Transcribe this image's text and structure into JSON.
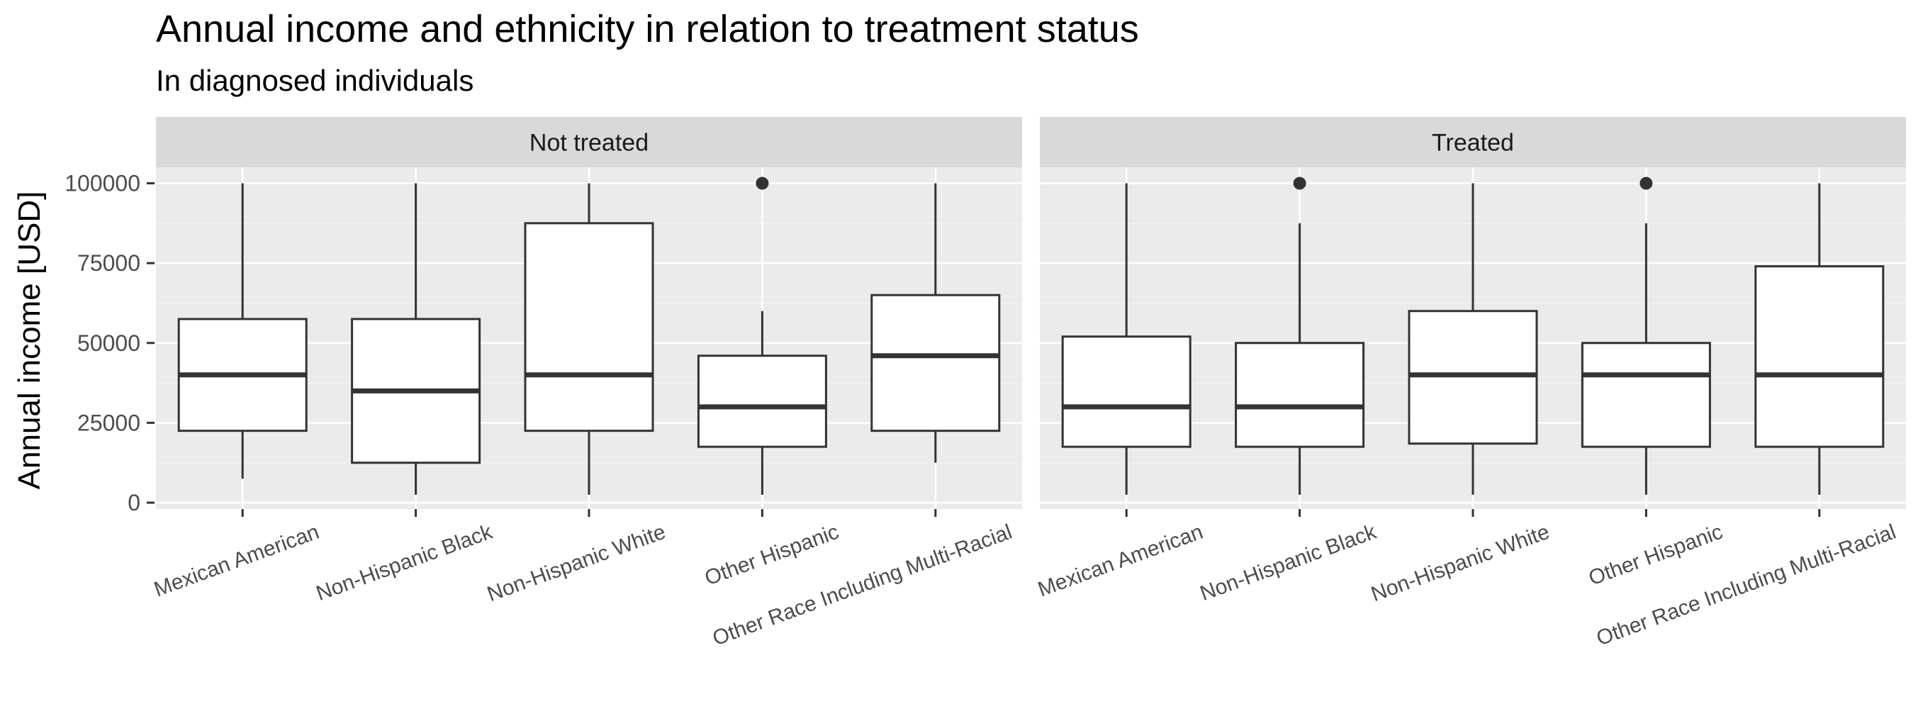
{
  "chart_data": {
    "type": "boxplot",
    "title": "Annual income and ethnicity in relation to treatment status",
    "subtitle": "In diagnosed individuals",
    "xlabel": "",
    "ylabel": "Annual income [USD]",
    "ylim": [
      -2000,
      105000
    ],
    "yticks": [
      "0",
      "25000",
      "50000",
      "75000",
      "100000"
    ],
    "ytick_values": [
      0,
      25000,
      50000,
      75000,
      100000
    ],
    "grid": true,
    "legend": "none",
    "categories": [
      "Mexican American",
      "Non-Hispanic Black",
      "Non-Hispanic White",
      "Other Hispanic",
      "Other Race Including Multi-Racial"
    ],
    "facets": [
      {
        "label": "Not treated",
        "boxes": [
          {
            "category": "Mexican American",
            "lower_whisker": 7500,
            "q1": 22500,
            "median": 40000,
            "q3": 57500,
            "upper_whisker": 100000,
            "outliers": []
          },
          {
            "category": "Non-Hispanic Black",
            "lower_whisker": 2500,
            "q1": 12500,
            "median": 35000,
            "q3": 57500,
            "upper_whisker": 100000,
            "outliers": []
          },
          {
            "category": "Non-Hispanic White",
            "lower_whisker": 2500,
            "q1": 22500,
            "median": 40000,
            "q3": 87500,
            "upper_whisker": 100000,
            "outliers": []
          },
          {
            "category": "Other Hispanic",
            "lower_whisker": 2500,
            "q1": 17500,
            "median": 30000,
            "q3": 46000,
            "upper_whisker": 60000,
            "outliers": [
              100000
            ]
          },
          {
            "category": "Other Race Including Multi-Racial",
            "lower_whisker": 12500,
            "q1": 22500,
            "median": 46000,
            "q3": 65000,
            "upper_whisker": 100000,
            "outliers": []
          }
        ]
      },
      {
        "label": "Treated",
        "boxes": [
          {
            "category": "Mexican American",
            "lower_whisker": 2500,
            "q1": 17500,
            "median": 30000,
            "q3": 52000,
            "upper_whisker": 100000,
            "outliers": []
          },
          {
            "category": "Non-Hispanic Black",
            "lower_whisker": 2500,
            "q1": 17500,
            "median": 30000,
            "q3": 50000,
            "upper_whisker": 87500,
            "outliers": [
              100000
            ]
          },
          {
            "category": "Non-Hispanic White",
            "lower_whisker": 2500,
            "q1": 18500,
            "median": 40000,
            "q3": 60000,
            "upper_whisker": 100000,
            "outliers": []
          },
          {
            "category": "Other Hispanic",
            "lower_whisker": 2500,
            "q1": 17500,
            "median": 40000,
            "q3": 50000,
            "upper_whisker": 87500,
            "outliers": [
              100000
            ]
          },
          {
            "category": "Other Race Including Multi-Racial",
            "lower_whisker": 2500,
            "q1": 17500,
            "median": 40000,
            "q3": 74000,
            "upper_whisker": 100000,
            "outliers": []
          }
        ]
      }
    ],
    "colors": {
      "panel_background": "#ebebeb",
      "strip_background": "#d9d9d9",
      "grid_major": "#ffffff",
      "grid_minor": "#f4f4f4",
      "box_fill": "#ffffff",
      "box_line": "#333333",
      "tick_text": "#4d4d4d",
      "tick_mark": "#333333"
    }
  }
}
